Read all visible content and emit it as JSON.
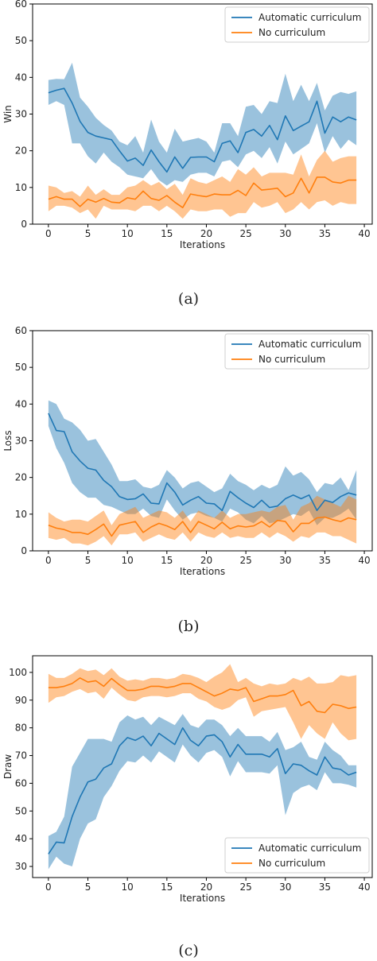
{
  "chart_data": [
    {
      "type": "line",
      "caption": "(a)",
      "xlabel": "Iterations",
      "ylabel": "Win",
      "xlim": [
        -2,
        41
      ],
      "ylim": [
        0,
        60
      ],
      "xticks": [
        "0",
        "5",
        "10",
        "15",
        "20",
        "25",
        "30",
        "35",
        "40"
      ],
      "yticks": [
        "0",
        "10",
        "20",
        "30",
        "40",
        "50",
        "60"
      ],
      "legend_position": "top-right",
      "grid": false,
      "series": [
        {
          "name": "Automatic curriculum",
          "color": "#1f77b4",
          "mean": [
            35.8,
            36.5,
            37.0,
            33.0,
            28.0,
            25.0,
            24.0,
            23.5,
            23.0,
            20.0,
            17.2,
            18.0,
            16.0,
            20.2,
            17.0,
            14.2,
            18.3,
            15.2,
            18.2,
            18.3,
            18.3,
            17.0,
            22.0,
            22.7,
            19.5,
            25.0,
            25.8,
            24.0,
            26.9,
            23.0,
            29.5,
            25.5,
            26.7,
            27.9,
            33.5,
            24.8,
            29.2,
            27.9,
            29.2,
            28.4
          ],
          "upper": [
            39.3,
            39.6,
            39.5,
            44.0,
            34.5,
            32.0,
            29.0,
            27.0,
            25.5,
            22.5,
            21.5,
            24.0,
            19.5,
            28.5,
            22.5,
            19.5,
            26.0,
            22.5,
            23.0,
            23.5,
            22.5,
            19.5,
            27.5,
            27.5,
            24.0,
            32.0,
            32.5,
            30.0,
            33.5,
            33.0,
            41.0,
            33.5,
            38.0,
            33.5,
            38.5,
            31.0,
            35.0,
            36.0,
            35.5,
            36.2
          ],
          "lower": [
            32.5,
            33.5,
            32.5,
            22.0,
            22.0,
            18.5,
            16.5,
            19.5,
            17.0,
            15.5,
            13.5,
            13.0,
            12.5,
            15.0,
            12.0,
            10.5,
            12.0,
            11.5,
            13.5,
            14.0,
            14.0,
            13.0,
            17.0,
            17.5,
            15.5,
            19.0,
            20.0,
            18.0,
            21.0,
            16.5,
            22.5,
            19.0,
            20.5,
            22.0,
            27.5,
            19.5,
            24.0,
            20.5,
            23.0,
            21.5
          ]
        },
        {
          "name": "No curriculum",
          "color": "#ff7f0e",
          "mean": [
            6.8,
            7.5,
            6.8,
            6.8,
            4.8,
            6.8,
            6.0,
            7.0,
            6.0,
            5.8,
            7.2,
            6.8,
            9.0,
            7.0,
            6.5,
            7.8,
            6.0,
            4.5,
            8.2,
            7.8,
            7.5,
            8.2,
            8.0,
            8.0,
            9.2,
            7.8,
            11.2,
            9.3,
            9.5,
            9.8,
            7.5,
            8.5,
            12.5,
            8.5,
            12.8,
            12.8,
            11.5,
            11.2,
            12.0,
            12.0
          ],
          "upper": [
            10.5,
            10.0,
            8.5,
            9.0,
            7.5,
            10.5,
            8.0,
            9.5,
            8.0,
            8.0,
            10.0,
            10.5,
            12.0,
            10.5,
            11.5,
            9.5,
            11.0,
            8.0,
            12.5,
            11.5,
            11.0,
            12.0,
            13.0,
            11.5,
            15.0,
            13.5,
            15.5,
            13.0,
            14.0,
            14.0,
            14.0,
            13.5,
            19.0,
            13.0,
            17.5,
            20.0,
            17.0,
            18.0,
            18.5,
            18.5
          ],
          "lower": [
            3.5,
            5.0,
            5.0,
            4.5,
            3.0,
            4.0,
            1.5,
            5.0,
            4.0,
            4.0,
            4.0,
            3.5,
            5.0,
            5.0,
            3.5,
            5.0,
            3.5,
            1.5,
            4.0,
            3.5,
            3.5,
            4.0,
            4.0,
            2.0,
            3.0,
            3.0,
            6.0,
            4.5,
            5.0,
            6.0,
            3.0,
            4.0,
            6.0,
            4.0,
            6.0,
            6.5,
            5.0,
            6.0,
            5.5,
            5.5
          ]
        }
      ]
    },
    {
      "type": "line",
      "caption": "(b)",
      "xlabel": "Iterations",
      "ylabel": "Loss",
      "xlim": [
        -2,
        41
      ],
      "ylim": [
        0,
        60
      ],
      "xticks": [
        "0",
        "5",
        "10",
        "15",
        "20",
        "25",
        "30",
        "35",
        "40"
      ],
      "yticks": [
        "0",
        "10",
        "20",
        "30",
        "40",
        "50",
        "60"
      ],
      "legend_position": "top-right",
      "grid": false,
      "series": [
        {
          "name": "Automatic curriculum",
          "color": "#1f77b4",
          "mean": [
            37.5,
            32.8,
            32.5,
            27.0,
            24.5,
            22.5,
            22.0,
            19.2,
            17.5,
            14.8,
            14.0,
            14.2,
            15.5,
            13.0,
            12.8,
            18.5,
            16.0,
            12.5,
            13.8,
            14.8,
            13.0,
            12.8,
            11.0,
            16.2,
            14.5,
            13.0,
            11.8,
            13.8,
            11.8,
            12.2,
            14.2,
            15.2,
            14.2,
            15.2,
            11.0,
            13.8,
            13.2,
            14.8,
            15.8,
            15.2
          ],
          "upper": [
            41.0,
            40.0,
            36.0,
            35.0,
            33.0,
            30.0,
            30.5,
            27.0,
            23.5,
            19.0,
            19.0,
            19.5,
            17.5,
            17.0,
            18.0,
            22.0,
            20.0,
            17.0,
            18.5,
            19.0,
            17.5,
            16.0,
            17.0,
            21.0,
            19.0,
            18.0,
            16.5,
            18.0,
            17.0,
            18.0,
            23.0,
            20.5,
            21.5,
            19.5,
            16.0,
            18.5,
            18.0,
            20.0,
            16.5,
            22.0
          ],
          "lower": [
            34.0,
            28.0,
            24.0,
            18.5,
            16.0,
            14.5,
            14.5,
            12.5,
            12.0,
            11.0,
            10.0,
            10.0,
            11.5,
            9.5,
            9.0,
            14.0,
            11.0,
            8.5,
            10.0,
            10.5,
            9.5,
            9.0,
            8.0,
            11.5,
            10.5,
            8.5,
            7.5,
            9.5,
            7.5,
            8.0,
            9.0,
            10.0,
            9.5,
            11.0,
            7.0,
            9.0,
            9.0,
            10.0,
            11.5,
            8.5
          ]
        },
        {
          "name": "No curriculum",
          "color": "#ff7f0e",
          "mean": [
            7.0,
            6.2,
            5.8,
            5.0,
            5.0,
            4.5,
            5.8,
            7.3,
            4.0,
            7.0,
            7.5,
            8.0,
            5.0,
            6.5,
            7.5,
            6.8,
            5.8,
            8.0,
            5.0,
            8.0,
            7.0,
            6.0,
            7.8,
            6.0,
            6.8,
            6.5,
            6.8,
            8.0,
            6.5,
            8.3,
            8.0,
            5.2,
            7.5,
            7.5,
            9.0,
            9.2,
            8.5,
            8.0,
            9.0,
            8.5
          ],
          "upper": [
            10.5,
            9.0,
            8.0,
            8.5,
            8.5,
            8.0,
            9.5,
            11.0,
            7.0,
            10.0,
            11.0,
            12.0,
            9.0,
            10.0,
            11.0,
            10.5,
            9.0,
            11.0,
            8.0,
            11.0,
            10.0,
            9.0,
            11.0,
            9.0,
            10.0,
            10.0,
            10.5,
            11.0,
            10.5,
            12.0,
            12.5,
            8.5,
            12.0,
            13.0,
            15.0,
            14.0,
            13.0,
            12.0,
            15.0,
            14.0
          ],
          "lower": [
            3.5,
            3.0,
            3.5,
            2.0,
            2.0,
            1.5,
            2.5,
            4.0,
            1.5,
            4.5,
            4.5,
            5.0,
            2.5,
            3.5,
            4.5,
            3.5,
            3.0,
            5.0,
            2.5,
            5.0,
            4.0,
            3.5,
            5.0,
            3.5,
            4.0,
            3.5,
            3.5,
            5.0,
            3.5,
            5.0,
            4.0,
            2.5,
            4.0,
            3.5,
            5.0,
            5.0,
            4.0,
            4.0,
            3.0,
            2.0
          ]
        }
      ]
    },
    {
      "type": "line",
      "caption": "(c)",
      "xlabel": "Iterations",
      "ylabel": "Draw",
      "xlim": [
        -2,
        41
      ],
      "ylim": [
        26,
        106
      ],
      "xticks": [
        "0",
        "5",
        "10",
        "15",
        "20",
        "25",
        "30",
        "35",
        "40"
      ],
      "yticks": [
        "30",
        "40",
        "50",
        "60",
        "70",
        "80",
        "90",
        "100"
      ],
      "legend_position": "bottom-right",
      "grid": false,
      "series": [
        {
          "name": "Automatic curriculum",
          "color": "#1f77b4",
          "mean": [
            34.5,
            38.8,
            38.5,
            48.0,
            55.0,
            60.5,
            61.5,
            65.5,
            67.0,
            73.5,
            76.5,
            75.5,
            77.0,
            73.5,
            78.0,
            76.0,
            74.0,
            80.0,
            75.5,
            73.5,
            77.0,
            77.5,
            75.0,
            69.5,
            74.0,
            70.5,
            70.5,
            70.5,
            69.5,
            72.5,
            63.5,
            67.0,
            66.5,
            64.5,
            63.0,
            69.5,
            65.5,
            65.0,
            63.0,
            64.0
          ],
          "upper": [
            41.0,
            42.5,
            48.0,
            66.0,
            71.0,
            76.0,
            76.0,
            76.0,
            75.0,
            82.0,
            84.5,
            83.0,
            84.0,
            81.0,
            84.0,
            82.5,
            81.0,
            85.0,
            81.0,
            80.0,
            83.0,
            83.0,
            81.0,
            77.0,
            80.0,
            77.0,
            77.0,
            77.0,
            75.0,
            78.5,
            72.0,
            73.0,
            75.0,
            69.5,
            68.5,
            75.0,
            72.0,
            70.0,
            66.5,
            66.5
          ],
          "lower": [
            29.0,
            33.5,
            31.0,
            30.0,
            40.0,
            45.5,
            47.0,
            55.0,
            59.0,
            64.5,
            68.0,
            67.5,
            70.0,
            67.5,
            71.5,
            69.5,
            67.5,
            74.0,
            70.0,
            67.5,
            71.0,
            72.0,
            69.5,
            62.5,
            68.0,
            64.0,
            64.0,
            64.0,
            63.5,
            66.5,
            48.5,
            56.5,
            58.5,
            59.5,
            57.5,
            64.0,
            60.0,
            60.0,
            59.5,
            58.5
          ]
        },
        {
          "name": "No curriculum",
          "color": "#ff7f0e",
          "mean": [
            94.5,
            94.5,
            95.0,
            96.0,
            98.0,
            96.5,
            97.0,
            95.0,
            97.8,
            95.5,
            93.5,
            93.5,
            94.0,
            95.0,
            95.0,
            94.5,
            95.0,
            96.0,
            96.0,
            94.5,
            93.0,
            91.5,
            92.5,
            94.0,
            93.5,
            94.5,
            89.5,
            90.5,
            91.5,
            91.5,
            92.0,
            93.5,
            88.0,
            89.5,
            86.0,
            85.5,
            88.5,
            88.0,
            87.0,
            87.5
          ],
          "upper": [
            99.5,
            98.0,
            98.0,
            99.5,
            101.5,
            100.5,
            101.0,
            99.0,
            101.5,
            98.5,
            97.0,
            97.5,
            97.0,
            98.0,
            98.0,
            97.5,
            98.0,
            99.5,
            99.0,
            98.0,
            96.5,
            98.5,
            100.0,
            103.0,
            96.5,
            98.0,
            96.0,
            95.0,
            96.0,
            95.5,
            96.0,
            98.0,
            97.0,
            98.5,
            96.0,
            96.0,
            96.5,
            99.0,
            98.5,
            99.0
          ],
          "lower": [
            89.0,
            91.0,
            91.5,
            93.0,
            94.0,
            92.5,
            93.0,
            90.5,
            94.5,
            92.0,
            90.0,
            89.5,
            91.0,
            91.5,
            91.5,
            91.0,
            91.5,
            92.5,
            92.5,
            90.5,
            89.5,
            87.5,
            86.5,
            87.5,
            90.0,
            91.0,
            84.0,
            86.0,
            86.5,
            87.0,
            87.5,
            82.0,
            76.0,
            81.0,
            78.0,
            76.0,
            82.0,
            78.0,
            75.5,
            76.0
          ]
        }
      ]
    }
  ]
}
